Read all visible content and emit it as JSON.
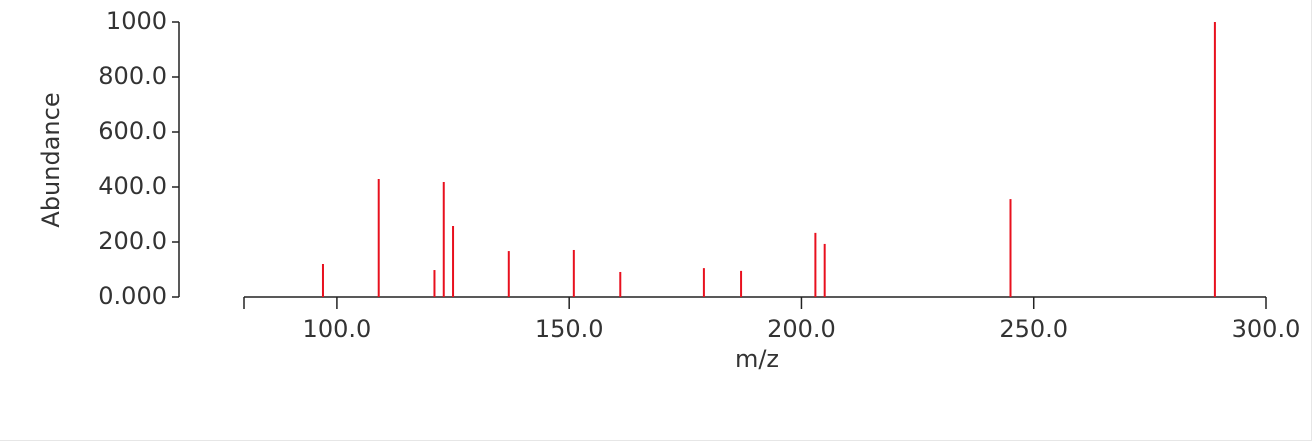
{
  "chart_data": {
    "type": "stem",
    "x_label": "m/z",
    "y_label": "Abundance",
    "x": [
      97,
      109,
      121,
      123,
      125,
      137,
      151,
      161,
      179,
      187,
      203,
      205,
      245,
      289
    ],
    "values": [
      120,
      429,
      98,
      418,
      258,
      167,
      171,
      91,
      105,
      95,
      233,
      193,
      356,
      1000
    ],
    "color": "#e8101e",
    "xlim": [
      80,
      300
    ],
    "xticks": [
      {
        "value": 100,
        "label": "100.0"
      },
      {
        "value": 150,
        "label": "150.0"
      },
      {
        "value": 200,
        "label": "200.0"
      },
      {
        "value": 250,
        "label": "250.0"
      },
      {
        "value": 300,
        "label": "300.0"
      }
    ],
    "ylim": [
      0,
      1000
    ],
    "yticks": [
      {
        "value": 0,
        "label": "0.000"
      },
      {
        "value": 200,
        "label": "200.0"
      },
      {
        "value": 400,
        "label": "400.0"
      },
      {
        "value": 600,
        "label": "600.0"
      },
      {
        "value": 800,
        "label": "800.0"
      },
      1000
    ]
  }
}
